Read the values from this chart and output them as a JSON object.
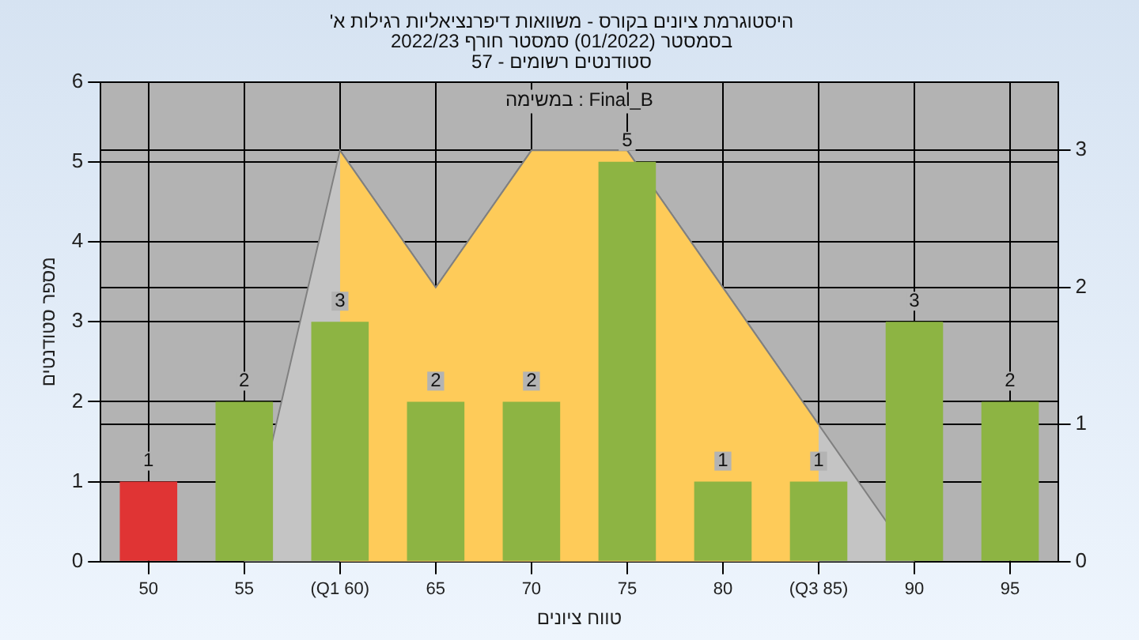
{
  "chart_data": {
    "type": "bar",
    "title": [
      "'היסטוגרמת ציונים בקורס - משוואות דיפרנציאליות רגילות א",
      "בסמסטר (01/2022) סמסטר חורף 2022/23",
      "סטודנטים רשומים - 57"
    ],
    "xlabel": "טווח ציונים",
    "ylabel": "מספר סטודנטים",
    "annotations": [
      "במשימה : Final_B"
    ],
    "categories": [
      "50",
      "55",
      "(Q1 60)",
      "65",
      "70",
      "75",
      "80",
      "(Q3 85)",
      "90",
      "95"
    ],
    "series": [
      {
        "colors": [
          "#e03434",
          "#8db443",
          "#8db443",
          "#8db443",
          "#8db443",
          "#8db443",
          "#8db443",
          "#8db443",
          "#8db443",
          "#8db443"
        ],
        "values": [
          1,
          2,
          3,
          2,
          2,
          5,
          1,
          1,
          3,
          2
        ],
        "value_labels": [
          "1",
          "2",
          "3",
          "2",
          "2",
          "5",
          "1",
          "1",
          "3",
          "2"
        ]
      },
      {
        "type": "area",
        "axis": "y2",
        "color": "#c4c4c4",
        "values": [
          null,
          0,
          3,
          2,
          3,
          3,
          2,
          1,
          0,
          null
        ]
      },
      {
        "type": "area",
        "axis": "y2",
        "color": "#fecb59",
        "values": [
          null,
          null,
          3,
          2,
          3,
          3,
          2,
          1,
          null,
          null
        ]
      }
    ],
    "ylim": [
      0,
      6
    ],
    "yticks": [
      0,
      1,
      2,
      3,
      4,
      5,
      6
    ],
    "y2lim": [
      0,
      3.5
    ],
    "y2ticks": [
      0,
      1,
      2,
      3
    ],
    "grid": true,
    "legend": false
  }
}
